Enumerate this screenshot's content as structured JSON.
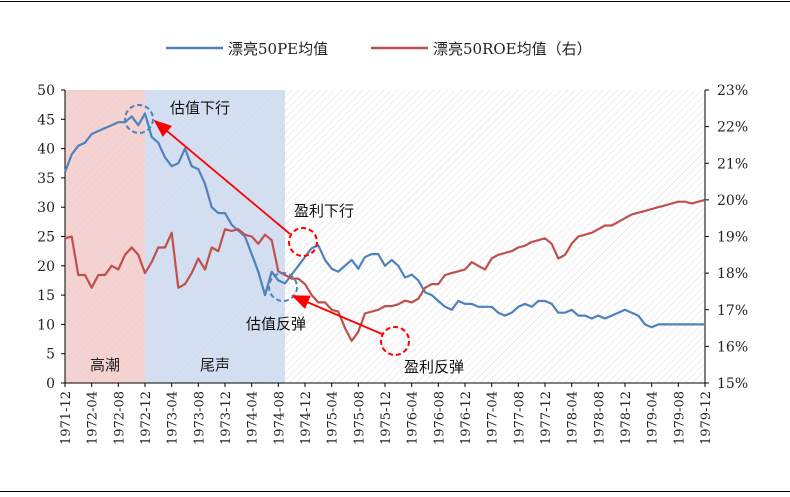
{
  "chart_data": {
    "type": "line",
    "legend": {
      "position": "top",
      "entries": [
        "漂亮50PE均值",
        "漂亮50ROE均值（右）"
      ]
    },
    "x_ticks": [
      "1971-12",
      "1972-04",
      "1972-08",
      "1972-12",
      "1973-04",
      "1973-08",
      "1973-12",
      "1974-04",
      "1974-08",
      "1974-12",
      "1975-04",
      "1975-08",
      "1975-12",
      "1976-04",
      "1976-08",
      "1976-12",
      "1977-04",
      "1977-08",
      "1977-12",
      "1978-04",
      "1978-08",
      "1978-12",
      "1979-04",
      "1979-08",
      "1979-12"
    ],
    "y_left": {
      "ticks": [
        0,
        5,
        10,
        15,
        20,
        25,
        30,
        35,
        40,
        45,
        50
      ],
      "range": [
        0,
        50
      ]
    },
    "y_right": {
      "ticks": [
        "15%",
        "16%",
        "17%",
        "18%",
        "19%",
        "20%",
        "21%",
        "22%",
        "23%"
      ],
      "range": [
        15,
        23
      ]
    },
    "regions": [
      {
        "label": "高潮",
        "from": "1971-12",
        "to": "1972-12",
        "color": "#f2c4c4"
      },
      {
        "label": "尾声",
        "from": "1972-12",
        "to": "1974-09",
        "color": "#c9d8ee"
      }
    ],
    "annotations": [
      "估值下行",
      "盈利下行",
      "估值反弹",
      "盈利反弹"
    ],
    "series": [
      {
        "name": "漂亮50PE均值",
        "color": "#4f81bd",
        "axis": "left",
        "x": [
          0,
          1,
          2,
          3,
          4,
          5,
          6,
          7,
          8,
          9,
          10,
          11,
          12,
          13,
          14,
          15,
          16,
          17,
          18,
          19,
          20,
          21,
          22,
          23,
          24,
          25,
          26,
          27,
          28,
          29,
          30,
          31,
          32,
          33,
          34,
          35,
          36,
          37,
          38,
          39,
          40,
          41,
          42,
          43,
          44,
          45,
          46,
          47,
          48,
          49,
          50,
          51,
          52,
          53,
          54,
          55,
          56,
          57,
          58,
          59,
          60,
          61,
          62,
          63,
          64,
          65,
          66,
          67,
          68,
          69,
          70,
          71,
          72,
          73,
          74,
          75,
          76,
          77,
          78,
          79,
          80,
          81,
          82,
          83,
          84,
          85,
          86,
          87,
          88,
          89,
          90,
          91,
          92,
          93,
          94,
          95,
          96
        ],
        "values": [
          36,
          39,
          40.5,
          41,
          42.5,
          43,
          43.5,
          44,
          44.5,
          44.5,
          45.5,
          44,
          46,
          42,
          41,
          38.5,
          37,
          37.5,
          40,
          37,
          36.5,
          34,
          30,
          29,
          29,
          27,
          26,
          25,
          22,
          19,
          15,
          19,
          17.5,
          17,
          18.5,
          20,
          21.5,
          23,
          23.5,
          21,
          19.5,
          19,
          20,
          21,
          19.5,
          21.5,
          22,
          22,
          20,
          21,
          20,
          18,
          18.5,
          17.5,
          15.5,
          15,
          14,
          13,
          12.5,
          14,
          13.5,
          13.5,
          13,
          13,
          13,
          12,
          11.5,
          12,
          13,
          13.5,
          13,
          14,
          14,
          13.5,
          12,
          12,
          12.5,
          11.5,
          11.5,
          11,
          11.5,
          11,
          11.5,
          12,
          12.5,
          12,
          11.5,
          10,
          9.5,
          10,
          10,
          10,
          10,
          10,
          10,
          10,
          10
        ]
      },
      {
        "name": "漂亮50ROE均值（右）",
        "color": "#c0504d",
        "axis": "right",
        "x": [
          0,
          1,
          2,
          3,
          4,
          5,
          6,
          7,
          8,
          9,
          10,
          11,
          12,
          13,
          14,
          15,
          16,
          17,
          18,
          19,
          20,
          21,
          22,
          23,
          24,
          25,
          26,
          27,
          28,
          29,
          30,
          31,
          32,
          33,
          34,
          35,
          36,
          37,
          38,
          39,
          40,
          41,
          42,
          43,
          44,
          45,
          46,
          47,
          48,
          49,
          50,
          51,
          52,
          53,
          54,
          55,
          56,
          57,
          58,
          59,
          60,
          61,
          62,
          63,
          64,
          65,
          66,
          67,
          68,
          69,
          70,
          71,
          72,
          73,
          74,
          75,
          76,
          77,
          78,
          79,
          80,
          81,
          82,
          83,
          84,
          85,
          86,
          87,
          88,
          89,
          90,
          91,
          92,
          93,
          94,
          95,
          96
        ],
        "values": [
          18.95,
          19.0,
          17.95,
          17.95,
          17.6,
          17.95,
          17.95,
          18.2,
          18.1,
          18.5,
          18.7,
          18.5,
          18.0,
          18.3,
          18.7,
          18.7,
          19.1,
          17.6,
          17.7,
          18.0,
          18.4,
          18.1,
          18.7,
          18.6,
          19.2,
          19.15,
          19.2,
          19.05,
          19.0,
          18.8,
          19.05,
          18.9,
          18.05,
          17.95,
          17.85,
          17.85,
          17.7,
          17.4,
          17.2,
          17.2,
          17.0,
          16.95,
          16.5,
          16.15,
          16.4,
          16.9,
          16.95,
          17.0,
          17.1,
          17.1,
          17.15,
          17.25,
          17.2,
          17.3,
          17.6,
          17.7,
          17.7,
          17.95,
          18.0,
          18.05,
          18.1,
          18.3,
          18.2,
          18.1,
          18.4,
          18.5,
          18.55,
          18.6,
          18.7,
          18.75,
          18.85,
          18.9,
          18.95,
          18.8,
          18.4,
          18.5,
          18.8,
          19.0,
          19.05,
          19.1,
          19.2,
          19.3,
          19.3,
          19.4,
          19.5,
          19.6,
          19.65,
          19.7,
          19.75,
          19.8,
          19.85,
          19.9,
          19.95,
          19.95,
          19.9,
          19.95,
          20.0
        ]
      }
    ]
  }
}
